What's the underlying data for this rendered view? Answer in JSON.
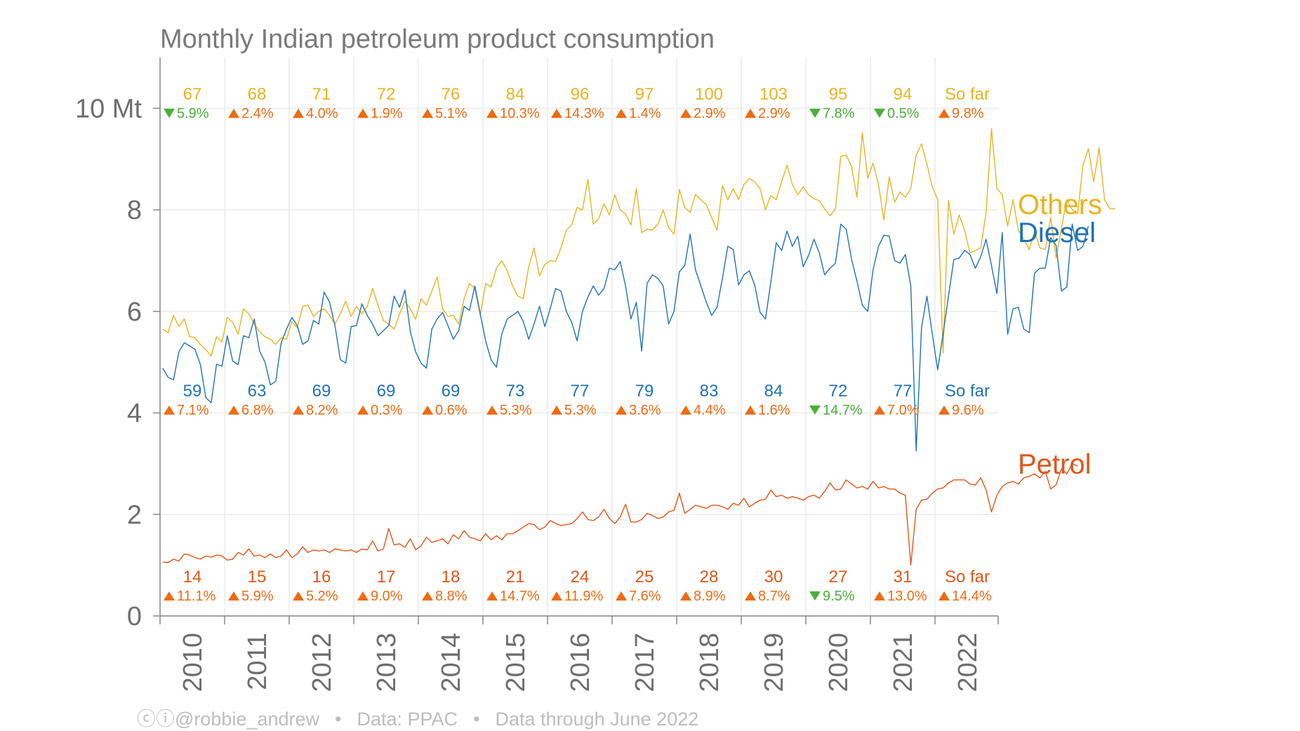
{
  "chart_data": {
    "type": "line",
    "title": "Monthly Indian petroleum product consumption",
    "ylabel": "",
    "xlabel": "",
    "ylim": [
      0,
      11
    ],
    "y_ticks": [
      {
        "value": 0,
        "label": "0"
      },
      {
        "value": 2,
        "label": "2"
      },
      {
        "value": 4,
        "label": "4"
      },
      {
        "value": 6,
        "label": "6"
      },
      {
        "value": 8,
        "label": "8"
      },
      {
        "value": 10,
        "label": "10 Mt"
      }
    ],
    "x_ticks": [
      "2010",
      "2011",
      "2012",
      "2013",
      "2014",
      "2015",
      "2016",
      "2017",
      "2018",
      "2019",
      "2020",
      "2021",
      "2022"
    ],
    "grid": true,
    "series": [
      {
        "name": "Others",
        "color": "#e8b41e",
        "annual": [
          {
            "total": "67",
            "dir": "down",
            "change": "5.9%"
          },
          {
            "total": "68",
            "dir": "up",
            "change": "2.4%"
          },
          {
            "total": "71",
            "dir": "up",
            "change": "4.0%"
          },
          {
            "total": "72",
            "dir": "up",
            "change": "1.9%"
          },
          {
            "total": "76",
            "dir": "up",
            "change": "5.1%"
          },
          {
            "total": "84",
            "dir": "up",
            "change": "10.3%"
          },
          {
            "total": "96",
            "dir": "up",
            "change": "14.3%"
          },
          {
            "total": "97",
            "dir": "up",
            "change": "1.4%"
          },
          {
            "total": "100",
            "dir": "up",
            "change": "2.9%"
          },
          {
            "total": "103",
            "dir": "up",
            "change": "2.9%"
          },
          {
            "total": "95",
            "dir": "down",
            "change": "7.8%"
          },
          {
            "total": "94",
            "dir": "down",
            "change": "0.5%"
          },
          {
            "total": "So far",
            "dir": "up",
            "change": "9.8%"
          }
        ],
        "values": [
          5.65,
          5.58,
          5.92,
          5.7,
          5.85,
          5.5,
          5.48,
          5.35,
          5.25,
          5.12,
          5.5,
          5.4,
          5.88,
          5.78,
          5.55,
          6.05,
          5.95,
          5.75,
          5.6,
          5.5,
          5.45,
          5.35,
          5.48,
          5.45,
          5.8,
          5.68,
          6.1,
          6.12,
          5.9,
          6.0,
          6.05,
          5.92,
          5.75,
          5.95,
          6.2,
          5.9,
          6.1,
          5.95,
          6.1,
          6.45,
          6.12,
          5.82,
          5.75,
          5.65,
          5.95,
          6.2,
          6.05,
          5.85,
          6.25,
          6.12,
          6.4,
          6.68,
          6.05,
          5.9,
          5.92,
          5.75,
          6.25,
          6.55,
          6.45,
          5.92,
          6.55,
          6.48,
          6.85,
          7.0,
          6.8,
          6.5,
          6.3,
          6.25,
          6.88,
          7.25,
          6.7,
          6.92,
          7.0,
          6.98,
          7.25,
          7.6,
          7.7,
          8.05,
          8.0,
          8.6,
          7.72,
          7.82,
          8.12,
          7.9,
          8.3,
          8.0,
          7.92,
          7.7,
          8.42,
          7.55,
          7.62,
          7.6,
          7.72,
          8.0,
          7.65,
          7.52,
          8.4,
          8.05,
          7.95,
          8.3,
          8.2,
          8.1,
          7.85,
          7.6,
          8.48,
          8.2,
          8.42,
          8.2,
          8.5,
          8.62,
          8.55,
          8.42,
          8.0,
          8.28,
          8.2,
          8.55,
          8.88,
          8.5,
          8.3,
          8.45,
          8.3,
          8.22,
          8.18,
          8.02,
          7.88,
          8.02,
          9.05,
          9.08,
          8.85,
          8.25,
          9.52,
          8.62,
          8.92,
          8.5,
          7.8,
          8.65,
          8.15,
          8.35,
          8.25,
          8.42,
          9.08,
          9.3,
          8.9,
          8.45,
          8.2,
          5.18,
          8.18,
          7.52,
          7.9,
          7.6,
          7.15,
          7.2,
          7.25,
          7.95,
          9.6,
          8.42,
          8.3,
          7.68,
          8.2,
          7.6,
          7.42,
          7.22,
          7.58,
          7.25,
          7.22,
          7.85,
          7.05,
          7.65,
          8.2,
          8.0,
          7.92,
          8.88,
          9.2,
          8.55,
          9.22,
          8.2,
          8.02,
          8.02
        ]
      },
      {
        "name": "Diesel",
        "color": "#1f72b8",
        "annual": [
          {
            "total": "59",
            "dir": "up",
            "change": "7.1%"
          },
          {
            "total": "63",
            "dir": "up",
            "change": "6.8%"
          },
          {
            "total": "69",
            "dir": "up",
            "change": "8.2%"
          },
          {
            "total": "69",
            "dir": "up",
            "change": "0.3%"
          },
          {
            "total": "69",
            "dir": "up",
            "change": "0.6%"
          },
          {
            "total": "73",
            "dir": "up",
            "change": "5.3%"
          },
          {
            "total": "77",
            "dir": "up",
            "change": "5.3%"
          },
          {
            "total": "79",
            "dir": "up",
            "change": "3.6%"
          },
          {
            "total": "83",
            "dir": "up",
            "change": "4.4%"
          },
          {
            "total": "84",
            "dir": "up",
            "change": "1.6%"
          },
          {
            "total": "72",
            "dir": "down",
            "change": "14.7%"
          },
          {
            "total": "77",
            "dir": "up",
            "change": "7.0%"
          },
          {
            "total": "So far",
            "dir": "up",
            "change": "9.6%"
          }
        ],
        "values": [
          4.88,
          4.7,
          4.65,
          5.2,
          5.38,
          5.32,
          5.25,
          4.95,
          4.3,
          4.2,
          4.96,
          4.92,
          5.52,
          5.02,
          4.95,
          5.52,
          5.48,
          5.85,
          5.22,
          5.0,
          4.55,
          4.62,
          5.38,
          5.65,
          5.88,
          5.72,
          5.35,
          5.42,
          5.82,
          5.75,
          6.38,
          6.18,
          5.72,
          5.05,
          4.98,
          5.7,
          5.72,
          6.15,
          5.92,
          5.75,
          5.52,
          5.62,
          5.72,
          6.3,
          6.08,
          6.42,
          5.6,
          5.2,
          4.98,
          4.88,
          5.65,
          5.85,
          5.98,
          5.72,
          5.45,
          5.62,
          6.1,
          6.02,
          6.5,
          5.95,
          5.42,
          5.05,
          4.9,
          5.55,
          5.85,
          5.92,
          6.0,
          5.8,
          5.45,
          5.75,
          6.1,
          5.7,
          6.05,
          6.45,
          6.4,
          6.0,
          5.78,
          5.42,
          6.0,
          6.28,
          6.5,
          6.32,
          6.45,
          6.85,
          6.82,
          6.98,
          6.5,
          5.85,
          6.18,
          5.22,
          6.55,
          6.72,
          6.65,
          6.5,
          5.75,
          6.0,
          6.78,
          6.9,
          7.52,
          6.82,
          6.5,
          6.18,
          5.92,
          6.08,
          6.65,
          7.28,
          7.22,
          6.52,
          6.72,
          6.8,
          6.52,
          5.98,
          5.85,
          6.58,
          7.35,
          7.2,
          7.58,
          7.28,
          7.48,
          6.88,
          7.1,
          7.42,
          7.15,
          6.72,
          6.85,
          6.95,
          7.72,
          7.62,
          7.02,
          6.6,
          6.12,
          6.0,
          6.82,
          7.28,
          7.5,
          7.48,
          7.0,
          6.95,
          7.12,
          6.5,
          3.25,
          5.68,
          6.3,
          5.55,
          4.85,
          5.55,
          6.3,
          7.02,
          7.05,
          7.2,
          7.12,
          6.85,
          7.08,
          7.42,
          6.9,
          6.35,
          7.55,
          5.55,
          6.05,
          6.08,
          5.65,
          5.58,
          6.75,
          6.85,
          6.85,
          7.45,
          7.3,
          6.4,
          6.48,
          7.72,
          7.2,
          7.28,
          7.68
        ]
      },
      {
        "name": "Petrol",
        "color": "#e0561a",
        "annual": [
          {
            "total": "14",
            "dir": "up",
            "change": "11.1%"
          },
          {
            "total": "15",
            "dir": "up",
            "change": "5.9%"
          },
          {
            "total": "16",
            "dir": "up",
            "change": "5.2%"
          },
          {
            "total": "17",
            "dir": "up",
            "change": "9.0%"
          },
          {
            "total": "18",
            "dir": "up",
            "change": "8.8%"
          },
          {
            "total": "21",
            "dir": "up",
            "change": "14.7%"
          },
          {
            "total": "24",
            "dir": "up",
            "change": "11.9%"
          },
          {
            "total": "25",
            "dir": "up",
            "change": "7.6%"
          },
          {
            "total": "28",
            "dir": "up",
            "change": "8.9%"
          },
          {
            "total": "30",
            "dir": "up",
            "change": "8.7%"
          },
          {
            "total": "27",
            "dir": "down",
            "change": "9.5%"
          },
          {
            "total": "31",
            "dir": "up",
            "change": "13.0%"
          },
          {
            "total": "So far",
            "dir": "up",
            "change": "14.4%"
          }
        ],
        "values": [
          1.06,
          1.05,
          1.12,
          1.08,
          1.22,
          1.2,
          1.15,
          1.12,
          1.18,
          1.16,
          1.2,
          1.18,
          1.1,
          1.12,
          1.25,
          1.2,
          1.32,
          1.18,
          1.2,
          1.15,
          1.22,
          1.15,
          1.18,
          1.3,
          1.15,
          1.22,
          1.36,
          1.25,
          1.3,
          1.28,
          1.3,
          1.25,
          1.32,
          1.3,
          1.28,
          1.3,
          1.25,
          1.32,
          1.3,
          1.48,
          1.28,
          1.32,
          1.72,
          1.4,
          1.42,
          1.35,
          1.52,
          1.3,
          1.38,
          1.55,
          1.45,
          1.48,
          1.52,
          1.42,
          1.6,
          1.52,
          1.68,
          1.55,
          1.52,
          1.48,
          1.62,
          1.5,
          1.58,
          1.5,
          1.62,
          1.62,
          1.68,
          1.75,
          1.82,
          1.8,
          1.7,
          1.75,
          1.88,
          1.82,
          1.78,
          1.8,
          1.82,
          1.92,
          2.05,
          1.9,
          1.88,
          1.95,
          2.1,
          1.92,
          1.82,
          1.95,
          2.2,
          1.85,
          1.85,
          1.9,
          2.02,
          1.98,
          1.92,
          1.95,
          2.05,
          2.08,
          2.42,
          2.02,
          2.1,
          2.18,
          2.15,
          2.12,
          2.18,
          2.18,
          2.15,
          2.1,
          2.22,
          2.18,
          2.32,
          2.15,
          2.22,
          2.28,
          2.3,
          2.48,
          2.35,
          2.38,
          2.32,
          2.35,
          2.32,
          2.28,
          2.35,
          2.38,
          2.32,
          2.45,
          2.62,
          2.48,
          2.5,
          2.68,
          2.6,
          2.52,
          2.55,
          2.5,
          2.65,
          2.52,
          2.55,
          2.5,
          2.5,
          2.42,
          2.38,
          1.0,
          2.1,
          2.28,
          2.3,
          2.42,
          2.5,
          2.52,
          2.62,
          2.68,
          2.68,
          2.68,
          2.6,
          2.58,
          2.72,
          2.48,
          2.05,
          2.38,
          2.55,
          2.62,
          2.65,
          2.6,
          2.72,
          2.75,
          2.8,
          2.72,
          2.85,
          2.5,
          2.58,
          2.9,
          2.8,
          3.0,
          2.95
        ]
      }
    ],
    "footer": {
      "author": "@robbie_andrew",
      "source": "Data: PPAC",
      "through": "Data through June 2022",
      "sep": "•",
      "cc_glyphs": "ⓒⓘ"
    },
    "arrow_colors": {
      "up": "#f06a12",
      "down": "#4caf3a"
    }
  }
}
